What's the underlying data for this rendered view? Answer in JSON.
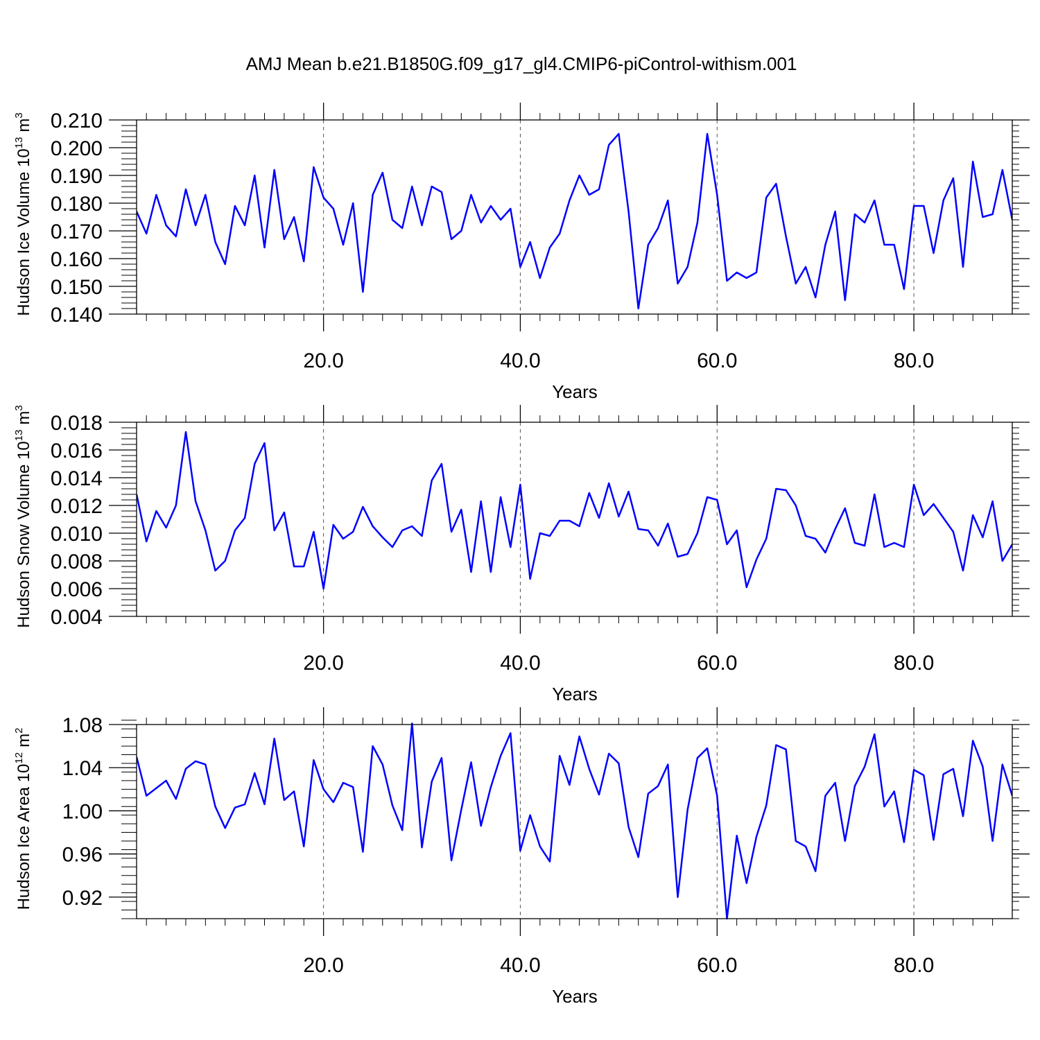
{
  "title": "AMJ Mean b.e21.B1850G.f09_g17_gl4.CMIP6-piControl-withism.001",
  "colors": {
    "line": "#0000ff",
    "axis": "#000000",
    "grid": "#555555"
  },
  "chart_data": [
    {
      "type": "line",
      "xlabel": "Years",
      "ylabel": "Hudson Ice Volume 10",
      "ylabel_exp": "13",
      "ylabel_unit": "m",
      "ylabel_unit_exp": "3",
      "xlim": [
        1,
        90
      ],
      "ylim": [
        0.14,
        0.21
      ],
      "yticks": [
        0.14,
        0.15,
        0.16,
        0.17,
        0.18,
        0.19,
        0.2,
        0.21
      ],
      "ytick_labels": [
        "0.140",
        "0.150",
        "0.160",
        "0.170",
        "0.180",
        "0.190",
        "0.200",
        "0.210"
      ],
      "ytick_minor": 0.002,
      "xticks": [
        20,
        40,
        60,
        80
      ],
      "xtick_labels": [
        "20.0",
        "40.0",
        "60.0",
        "80.0"
      ],
      "xtick_minor": 2,
      "grid": "vertical dashed at major x ticks",
      "series": [
        {
          "x": [
            1,
            2,
            3,
            4,
            5,
            6,
            7,
            8,
            9,
            10,
            11,
            12,
            13,
            14,
            15,
            16,
            17,
            18,
            19,
            20,
            21,
            22,
            23,
            24,
            25,
            26,
            27,
            28,
            29,
            30,
            31,
            32,
            33,
            34,
            35,
            36,
            37,
            38,
            39,
            40,
            41,
            42,
            43,
            44,
            45,
            46,
            47,
            48,
            49,
            50,
            51,
            52,
            53,
            54,
            55,
            56,
            57,
            58,
            59,
            60,
            61,
            62,
            63,
            64,
            65,
            66,
            67,
            68,
            69,
            70,
            71,
            72,
            73,
            74,
            75,
            76,
            77,
            78,
            79,
            80,
            81,
            82,
            83,
            84,
            85,
            86,
            87,
            88,
            89,
            90
          ],
          "values": [
            0.177,
            0.169,
            0.183,
            0.172,
            0.168,
            0.185,
            0.172,
            0.183,
            0.166,
            0.158,
            0.179,
            0.172,
            0.19,
            0.164,
            0.192,
            0.167,
            0.175,
            0.159,
            0.193,
            0.182,
            0.178,
            0.165,
            0.18,
            0.148,
            0.183,
            0.191,
            0.174,
            0.171,
            0.186,
            0.172,
            0.186,
            0.184,
            0.167,
            0.17,
            0.183,
            0.173,
            0.179,
            0.174,
            0.178,
            0.157,
            0.166,
            0.153,
            0.164,
            0.169,
            0.181,
            0.19,
            0.183,
            0.185,
            0.201,
            0.205,
            0.177,
            0.142,
            0.165,
            0.171,
            0.181,
            0.151,
            0.157,
            0.173,
            0.205,
            0.183,
            0.152,
            0.155,
            0.153,
            0.155,
            0.182,
            0.187,
            0.168,
            0.151,
            0.157,
            0.146,
            0.165,
            0.177,
            0.145,
            0.176,
            0.173,
            0.181,
            0.165,
            0.165,
            0.149,
            0.179,
            0.179,
            0.162,
            0.181,
            0.189,
            0.157,
            0.195,
            0.175,
            0.176,
            0.192,
            0.174
          ]
        }
      ]
    },
    {
      "type": "line",
      "xlabel": "Years",
      "ylabel": "Hudson Snow Volume 10",
      "ylabel_exp": "13",
      "ylabel_unit": "m",
      "ylabel_unit_exp": "3",
      "xlim": [
        1,
        90
      ],
      "ylim": [
        0.004,
        0.018
      ],
      "yticks": [
        0.004,
        0.006,
        0.008,
        0.01,
        0.012,
        0.014,
        0.016,
        0.018
      ],
      "ytick_labels": [
        "0.004",
        "0.006",
        "0.008",
        "0.010",
        "0.012",
        "0.014",
        "0.016",
        "0.018"
      ],
      "ytick_minor": 0.0004,
      "xticks": [
        20,
        40,
        60,
        80
      ],
      "xtick_labels": [
        "20.0",
        "40.0",
        "60.0",
        "80.0"
      ],
      "xtick_minor": 2,
      "grid": "vertical dashed at major x ticks",
      "series": [
        {
          "x": [
            1,
            2,
            3,
            4,
            5,
            6,
            7,
            8,
            9,
            10,
            11,
            12,
            13,
            14,
            15,
            16,
            17,
            18,
            19,
            20,
            21,
            22,
            23,
            24,
            25,
            26,
            27,
            28,
            29,
            30,
            31,
            32,
            33,
            34,
            35,
            36,
            37,
            38,
            39,
            40,
            41,
            42,
            43,
            44,
            45,
            46,
            47,
            48,
            49,
            50,
            51,
            52,
            53,
            54,
            55,
            56,
            57,
            58,
            59,
            60,
            61,
            62,
            63,
            64,
            65,
            66,
            67,
            68,
            69,
            70,
            71,
            72,
            73,
            74,
            75,
            76,
            77,
            78,
            79,
            80,
            81,
            82,
            83,
            84,
            85,
            86,
            87,
            88,
            89,
            90
          ],
          "values": [
            0.0128,
            0.0094,
            0.0116,
            0.0104,
            0.012,
            0.0173,
            0.0123,
            0.0102,
            0.0073,
            0.008,
            0.0102,
            0.0111,
            0.015,
            0.0165,
            0.0102,
            0.0115,
            0.0076,
            0.0076,
            0.0101,
            0.006,
            0.0106,
            0.0096,
            0.0101,
            0.0119,
            0.0105,
            0.0097,
            0.009,
            0.0102,
            0.0105,
            0.0098,
            0.0138,
            0.015,
            0.0101,
            0.0117,
            0.0072,
            0.0123,
            0.0072,
            0.0126,
            0.009,
            0.0135,
            0.0067,
            0.01,
            0.0098,
            0.0109,
            0.0109,
            0.0105,
            0.0129,
            0.0111,
            0.0136,
            0.0112,
            0.013,
            0.0103,
            0.0102,
            0.0091,
            0.0107,
            0.0083,
            0.0085,
            0.01,
            0.0126,
            0.0124,
            0.0092,
            0.0102,
            0.0061,
            0.0081,
            0.0096,
            0.0132,
            0.0131,
            0.012,
            0.0098,
            0.0096,
            0.0086,
            0.0103,
            0.0118,
            0.0093,
            0.0091,
            0.0128,
            0.009,
            0.0093,
            0.009,
            0.0135,
            0.0113,
            0.0121,
            0.0111,
            0.0101,
            0.0073,
            0.0113,
            0.0097,
            0.0123,
            0.008,
            0.0092
          ]
        }
      ]
    },
    {
      "type": "line",
      "xlabel": "Years",
      "ylabel": "Hudson Ice Area 10",
      "ylabel_exp": "12",
      "ylabel_unit": "m",
      "ylabel_unit_exp": "2",
      "xlim": [
        1,
        90
      ],
      "ylim": [
        0.9,
        1.08
      ],
      "yticks": [
        0.92,
        0.96,
        1.0,
        1.04,
        1.08
      ],
      "ytick_labels": [
        "0.92",
        "0.96",
        "1.00",
        "1.04",
        "1.08"
      ],
      "ytick_minor": 0.008,
      "xticks": [
        20,
        40,
        60,
        80
      ],
      "xtick_labels": [
        "20.0",
        "40.0",
        "60.0",
        "80.0"
      ],
      "xtick_minor": 2,
      "grid": "vertical dashed at major x ticks",
      "series": [
        {
          "x": [
            1,
            2,
            3,
            4,
            5,
            6,
            7,
            8,
            9,
            10,
            11,
            12,
            13,
            14,
            15,
            16,
            17,
            18,
            19,
            20,
            21,
            22,
            23,
            24,
            25,
            26,
            27,
            28,
            29,
            30,
            31,
            32,
            33,
            34,
            35,
            36,
            37,
            38,
            39,
            40,
            41,
            42,
            43,
            44,
            45,
            46,
            47,
            48,
            49,
            50,
            51,
            52,
            53,
            54,
            55,
            56,
            57,
            58,
            59,
            60,
            61,
            62,
            63,
            64,
            65,
            66,
            67,
            68,
            69,
            70,
            71,
            72,
            73,
            74,
            75,
            76,
            77,
            78,
            79,
            80,
            81,
            82,
            83,
            84,
            85,
            86,
            87,
            88,
            89,
            90
          ],
          "values": [
            1.05,
            1.014,
            1.021,
            1.028,
            1.011,
            1.039,
            1.046,
            1.043,
            1.004,
            0.984,
            1.003,
            1.006,
            1.035,
            1.006,
            1.067,
            1.01,
            1.018,
            0.967,
            1.047,
            1.02,
            1.008,
            1.026,
            1.022,
            0.962,
            1.06,
            1.043,
            1.005,
            0.982,
            1.081,
            0.966,
            1.027,
            1.049,
            0.954,
            1.001,
            1.045,
            0.986,
            1.022,
            1.051,
            1.072,
            0.963,
            0.996,
            0.967,
            0.953,
            1.051,
            1.024,
            1.069,
            1.039,
            1.015,
            1.053,
            1.044,
            0.985,
            0.957,
            1.016,
            1.023,
            1.043,
            0.92,
            1.001,
            1.049,
            1.058,
            1.014,
            0.9,
            0.977,
            0.933,
            0.976,
            1.005,
            1.061,
            1.057,
            0.972,
            0.967,
            0.944,
            1.014,
            1.026,
            0.972,
            1.023,
            1.041,
            1.071,
            1.004,
            1.018,
            0.971,
            1.038,
            1.033,
            0.973,
            1.034,
            1.039,
            0.995,
            1.065,
            1.041,
            0.972,
            1.043,
            1.014
          ]
        }
      ]
    }
  ]
}
